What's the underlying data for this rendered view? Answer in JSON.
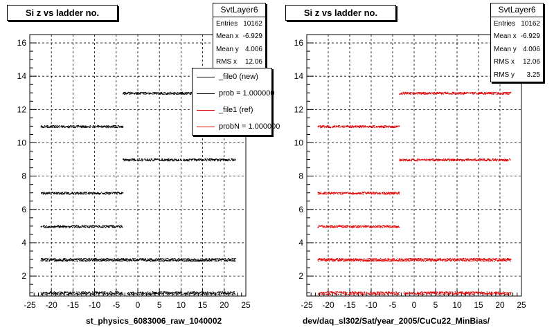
{
  "colors": {
    "new": "#000000",
    "ref": "#e00000"
  },
  "panels": [
    {
      "title": "Si z vs ladder no.",
      "stats": {
        "name": "SvtLayer6",
        "rows": [
          {
            "label": "Entries",
            "value": "10162"
          },
          {
            "label": "Mean x",
            "value": "-6.929"
          },
          {
            "label": "Mean y",
            "value": "4.006"
          },
          {
            "label": "RMS x",
            "value": "12.06"
          }
        ]
      },
      "legend": [
        {
          "label": "_file0 (new)",
          "color": "#000000"
        },
        {
          "label": "prob = 1.000000",
          "color": "#000000"
        },
        {
          "label": "_file1 (ref)",
          "color": "#e00000"
        },
        {
          "label": "probN = 1.000000",
          "color": "#e00000"
        }
      ],
      "xtitle": "st_physics_6083006_raw_1040002"
    },
    {
      "title": "Si z vs ladder no.",
      "stats": {
        "name": "SvtLayer6",
        "rows": [
          {
            "label": "Entries",
            "value": "10162"
          },
          {
            "label": "Mean x",
            "value": "-6.929"
          },
          {
            "label": "Mean y",
            "value": "4.006"
          },
          {
            "label": "RMS x",
            "value": "12.06"
          },
          {
            "label": "RMS y",
            "value": "3.25"
          }
        ]
      },
      "xtitle": "dev/daq_sl302/Sat/year_2005/CuCu22_MinBias/"
    }
  ],
  "chart_data": [
    {
      "type": "scatter",
      "title": "Si z vs ladder no.",
      "xlabel": "st_physics_6083006_raw_1040002",
      "ylabel": "",
      "xlim": [
        -25,
        25
      ],
      "ylim": [
        0.8,
        16.5
      ],
      "xticks": [
        -25,
        -20,
        -15,
        -10,
        -5,
        0,
        5,
        10,
        15,
        20,
        25
      ],
      "yticks": [
        2,
        4,
        6,
        8,
        10,
        12,
        14,
        16
      ],
      "grid": true,
      "legend_position": "top-right",
      "color": "#000000",
      "bands": [
        {
          "y": 1,
          "segments": [
            [
              -22.5,
              -3.5
            ],
            [
              -2.5,
              22.5
            ]
          ]
        },
        {
          "y": 3,
          "segments": [
            [
              -22.5,
              22.5
            ]
          ]
        },
        {
          "y": 5,
          "segments": [
            [
              -22.5,
              -3.5
            ]
          ]
        },
        {
          "y": 7,
          "segments": [
            [
              -22.5,
              -3.5
            ]
          ]
        },
        {
          "y": 9,
          "segments": [
            [
              -3.5,
              22.5
            ]
          ]
        },
        {
          "y": 11,
          "segments": [
            [
              -22.5,
              -3.5
            ]
          ]
        },
        {
          "y": 13,
          "segments": [
            [
              -3.5,
              22.5
            ]
          ]
        }
      ]
    },
    {
      "type": "scatter",
      "title": "Si z vs ladder no.",
      "xlabel": "dev/daq_sl302/Sat/year_2005/CuCu22_MinBias/",
      "ylabel": "",
      "xlim": [
        -25,
        25
      ],
      "ylim": [
        0.8,
        16.5
      ],
      "xticks": [
        -25,
        -20,
        -15,
        -10,
        -5,
        0,
        5,
        10,
        15,
        20,
        25
      ],
      "yticks": [
        2,
        4,
        6,
        8,
        10,
        12,
        14,
        16
      ],
      "grid": true,
      "color": "#e00000",
      "bands": [
        {
          "y": 1,
          "segments": [
            [
              -22.5,
              -3.5
            ],
            [
              -2.5,
              22.5
            ]
          ]
        },
        {
          "y": 3,
          "segments": [
            [
              -22.5,
              22.5
            ]
          ]
        },
        {
          "y": 5,
          "segments": [
            [
              -22.5,
              -3.5
            ]
          ]
        },
        {
          "y": 7,
          "segments": [
            [
              -22.5,
              -3.5
            ]
          ]
        },
        {
          "y": 9,
          "segments": [
            [
              -3.5,
              22.5
            ]
          ]
        },
        {
          "y": 11,
          "segments": [
            [
              -22.5,
              -3.5
            ]
          ]
        },
        {
          "y": 13,
          "segments": [
            [
              -3.5,
              22.5
            ]
          ]
        }
      ]
    }
  ]
}
